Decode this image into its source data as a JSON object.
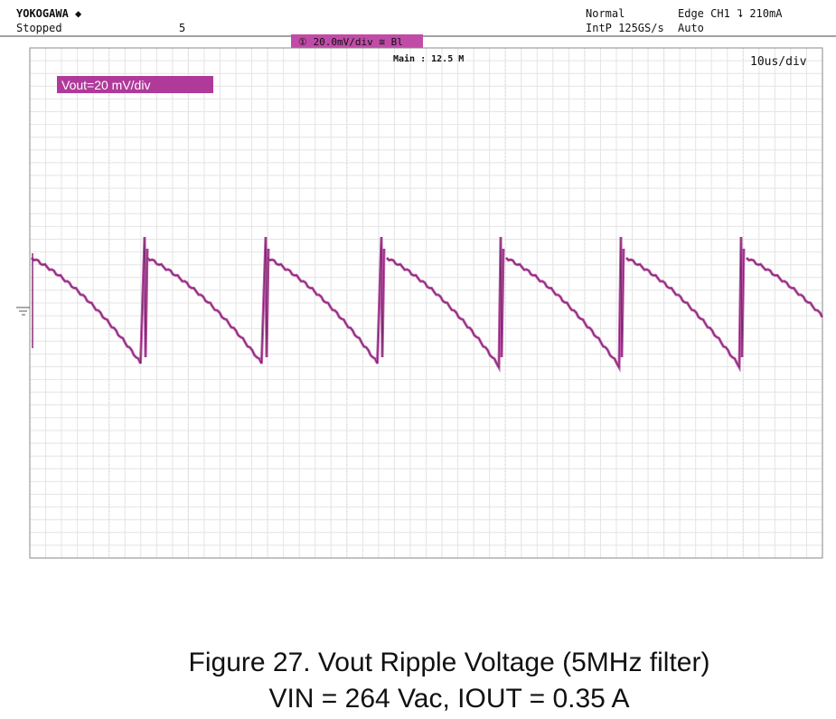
{
  "scope": {
    "brand": "YOKOGAWA ◆",
    "status": "Stopped",
    "mark": "5",
    "mode": "Normal",
    "sampling": "IntP 125GS/s",
    "trigger": "Edge CH1 ⮧ 210mA",
    "trigger_mode": "Auto",
    "channel_scale": "① 20.0mV/div ≅ Bl",
    "record": "Main : 12.5 M",
    "timebase": "10us/div",
    "trace_label": "Vout=20 mV/div"
  },
  "caption": {
    "line1": "Figure 27. Vout Ripple Voltage (5MHz filter)",
    "line2": "VIN = 264 Vac, IOUT = 0.35 A"
  }
}
